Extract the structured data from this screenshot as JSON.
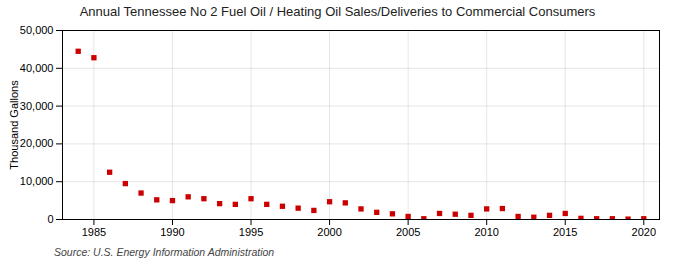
{
  "chart_data": {
    "type": "scatter",
    "title": "Annual Tennessee No 2 Fuel Oil / Heating Oil Sales/Deliveries to Commercial Consumers",
    "ylabel": "Thousand Gallons",
    "annotation": "Source: U.S. Energy Information Administration",
    "x": [
      1984,
      1985,
      1986,
      1987,
      1988,
      1989,
      1990,
      1991,
      1992,
      1993,
      1994,
      1995,
      1996,
      1997,
      1998,
      1999,
      2000,
      2001,
      2002,
      2003,
      2004,
      2005,
      2006,
      2007,
      2008,
      2009,
      2010,
      2011,
      2012,
      2013,
      2014,
      2015,
      2016,
      2017,
      2018,
      2019,
      2020
    ],
    "values": [
      44500,
      42800,
      12500,
      9500,
      7000,
      5200,
      5000,
      6000,
      5500,
      4200,
      4000,
      5500,
      4000,
      3500,
      3000,
      2400,
      4700,
      4400,
      2800,
      1900,
      1500,
      800,
      200,
      1600,
      1400,
      1100,
      2800,
      2900,
      800,
      600,
      1100,
      1600,
      300,
      200,
      200,
      100,
      200
    ],
    "color": "#cc0000",
    "marker": "square",
    "xlim": [
      1983,
      2021
    ],
    "xticks": [
      1985,
      1990,
      1995,
      2000,
      2005,
      2010,
      2015,
      2020
    ],
    "ylim": [
      0,
      50000
    ],
    "yticks": [
      0,
      {
        "value": 10000,
        "label": "10,000"
      },
      {
        "value": 20000,
        "label": "20,000"
      },
      {
        "value": 30000,
        "label": "30,000"
      },
      {
        "value": 40000,
        "label": "40,000"
      },
      {
        "value": 50000,
        "label": "50,000"
      }
    ],
    "grid": true
  }
}
